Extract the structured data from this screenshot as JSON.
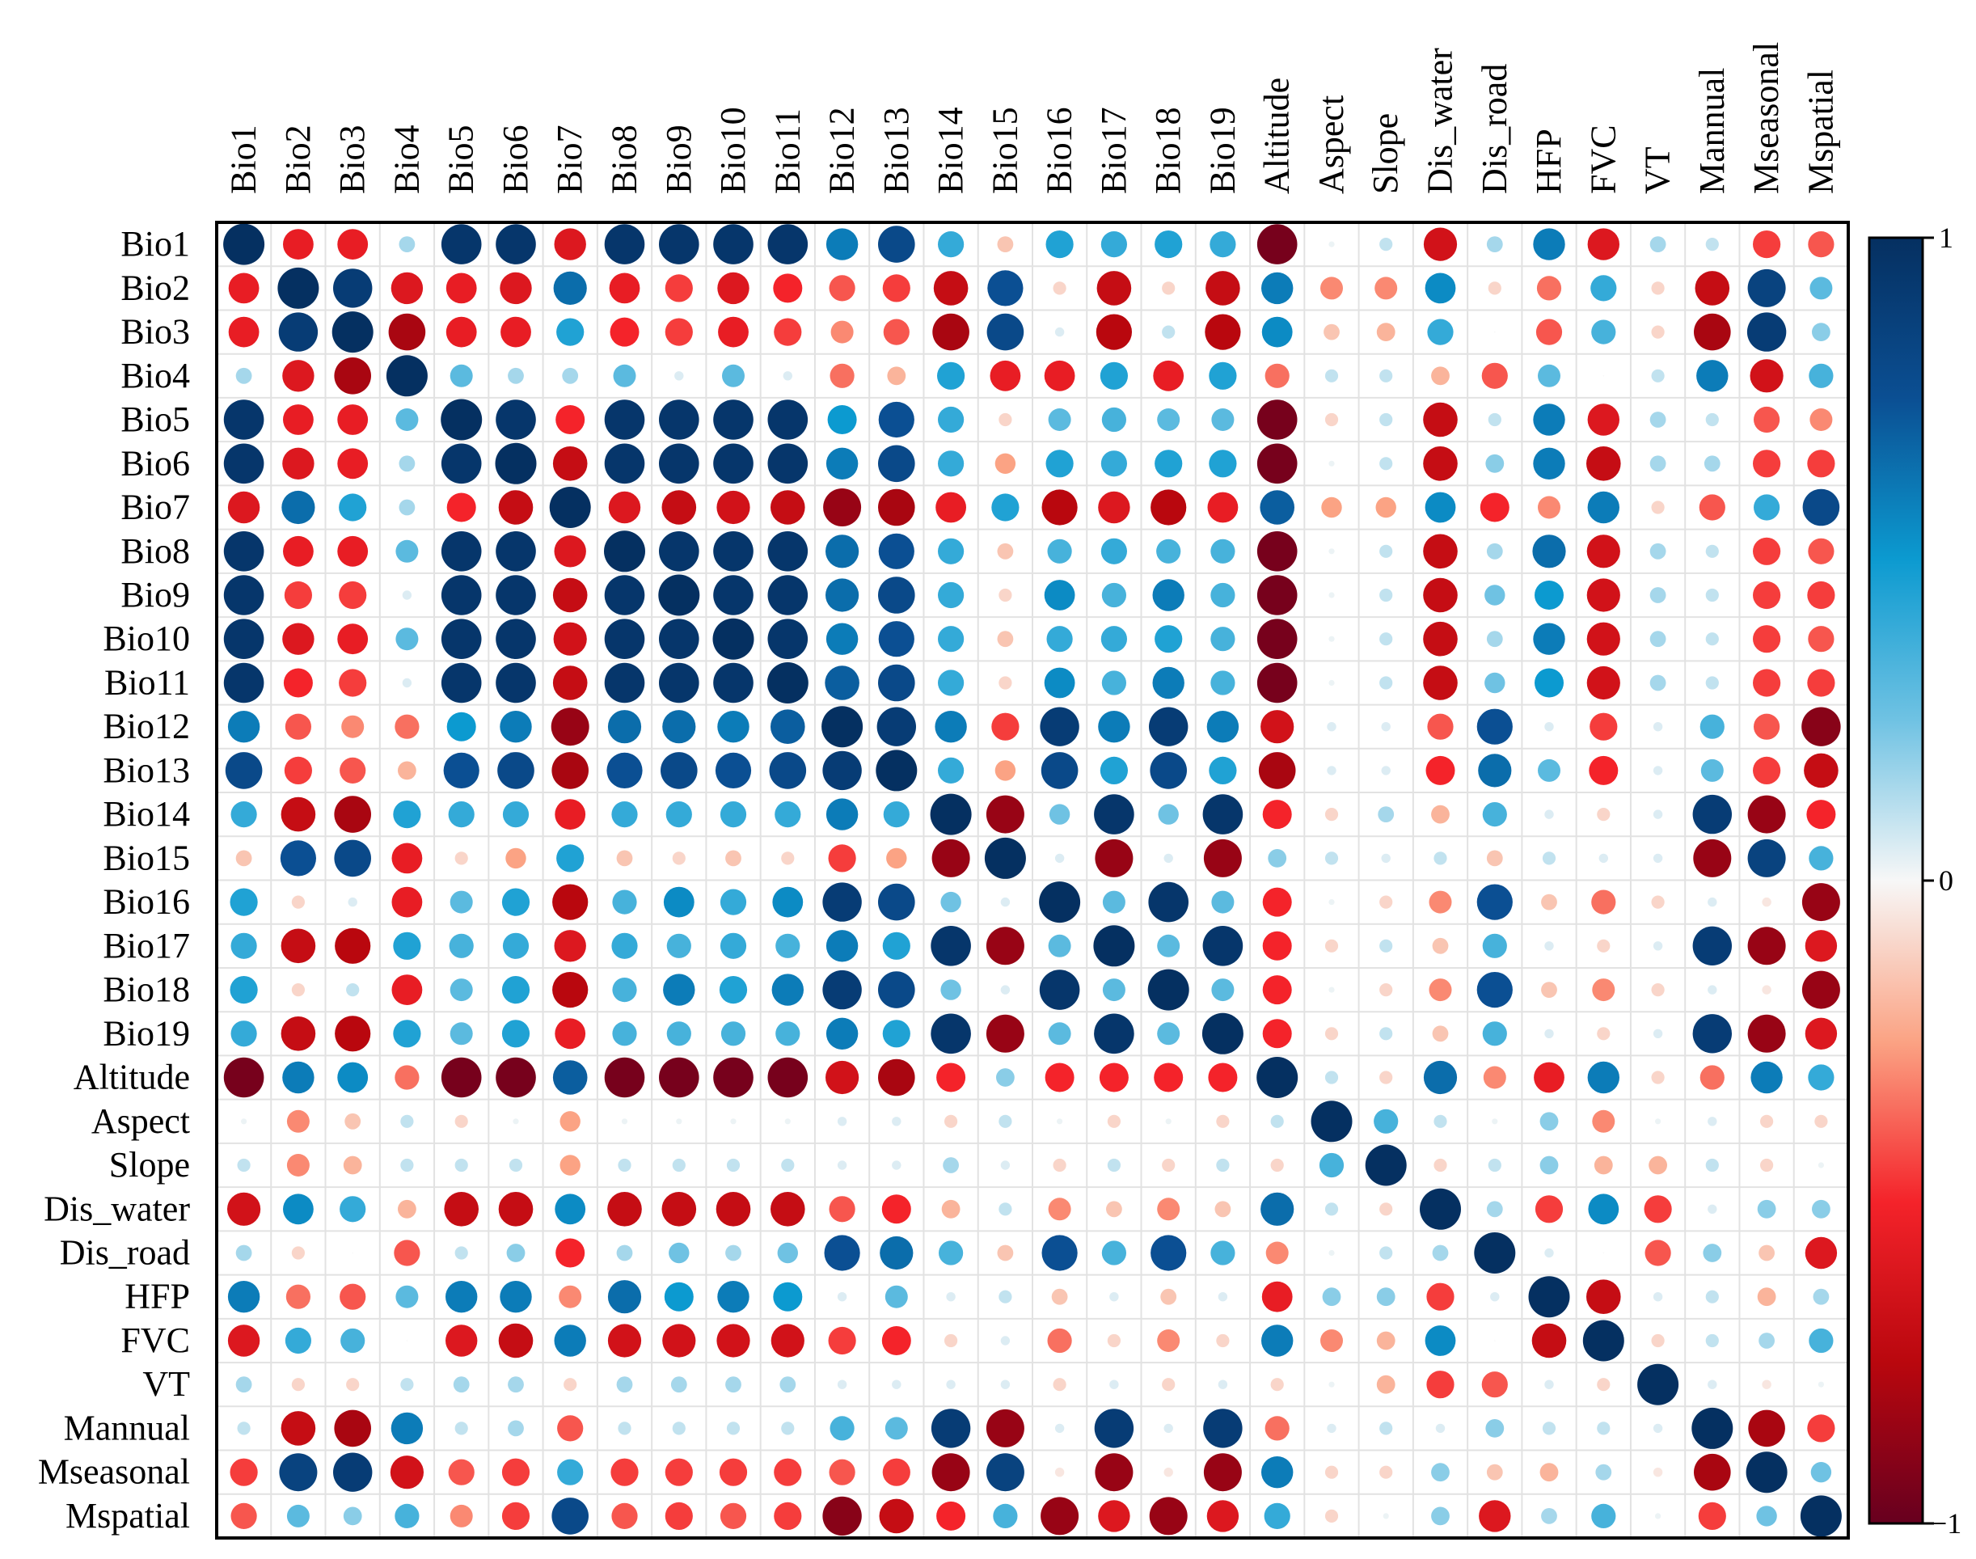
{
  "chart_data": {
    "type": "heatmap",
    "style": "circle-correlation-matrix",
    "title": "",
    "variables": [
      "Bio1",
      "Bio2",
      "Bio3",
      "Bio4",
      "Bio5",
      "Bio6",
      "Bio7",
      "Bio8",
      "Bio9",
      "Bio10",
      "Bio11",
      "Bio12",
      "Bio13",
      "Bio14",
      "Bio15",
      "Bio16",
      "Bio17",
      "Bio18",
      "Bio19",
      "Altitude",
      "Aspect",
      "Slope",
      "Dis_water",
      "Dis_road",
      "HFP",
      "FVC",
      "VT",
      "Mannual",
      "Mseasonal",
      "Mspatial"
    ],
    "colorbar": {
      "min": -1,
      "max": 1,
      "ticks": [
        "1",
        "0",
        "−1"
      ],
      "placement": "right"
    },
    "colors": {
      "negative_strong": "#67001f",
      "negative_mid": "#f4232a",
      "neutral": "#f7f7f7",
      "positive_mid": "#0c9ad0",
      "positive_strong": "#053061"
    },
    "matrix": [
      [
        1,
        -0.55,
        -0.55,
        0.15,
        0.95,
        0.95,
        -0.6,
        0.95,
        0.95,
        0.95,
        0.95,
        0.6,
        0.8,
        0.4,
        -0.15,
        0.45,
        0.4,
        0.45,
        0.4,
        -0.95,
        0.02,
        0.1,
        -0.65,
        0.15,
        0.6,
        -0.6,
        0.15,
        0.1,
        -0.45,
        -0.4
      ],
      [
        -0.55,
        1,
        0.9,
        -0.6,
        -0.55,
        -0.6,
        0.65,
        -0.55,
        -0.45,
        -0.6,
        -0.5,
        -0.4,
        -0.45,
        -0.7,
        0.75,
        -0.1,
        -0.7,
        -0.1,
        -0.7,
        0.6,
        -0.3,
        -0.3,
        0.55,
        -0.1,
        -0.35,
        0.4,
        -0.1,
        -0.7,
        0.85,
        0.3
      ],
      [
        -0.55,
        0.9,
        1,
        -0.8,
        -0.55,
        -0.55,
        0.45,
        -0.5,
        -0.45,
        -0.55,
        -0.45,
        -0.3,
        -0.4,
        -0.8,
        0.8,
        0.05,
        -0.75,
        0.1,
        -0.75,
        0.55,
        -0.15,
        -0.2,
        0.4,
        0,
        -0.4,
        0.35,
        -0.1,
        -0.8,
        0.9,
        0.2
      ],
      [
        0.15,
        -0.6,
        -0.8,
        1,
        0.3,
        0.15,
        0.15,
        0.3,
        0.05,
        0.3,
        0.05,
        -0.35,
        -0.2,
        0.45,
        -0.55,
        -0.55,
        0.45,
        -0.55,
        0.45,
        -0.35,
        0.1,
        0.1,
        -0.2,
        -0.4,
        0.3,
        0,
        0.1,
        0.6,
        -0.65,
        0.35
      ],
      [
        0.95,
        -0.55,
        -0.55,
        0.3,
        1,
        0.95,
        -0.5,
        0.95,
        0.95,
        0.95,
        0.95,
        0.5,
        0.75,
        0.4,
        -0.1,
        0.3,
        0.35,
        0.3,
        0.3,
        -0.95,
        -0.1,
        0.1,
        -0.7,
        0.1,
        0.6,
        -0.6,
        0.15,
        0.1,
        -0.4,
        -0.3
      ],
      [
        0.95,
        -0.6,
        -0.55,
        0.15,
        0.95,
        1,
        -0.7,
        0.95,
        0.95,
        0.95,
        0.95,
        0.6,
        0.8,
        0.4,
        -0.25,
        0.45,
        0.4,
        0.45,
        0.45,
        -0.95,
        0.02,
        0.1,
        -0.7,
        0.2,
        0.6,
        -0.7,
        0.15,
        0.15,
        -0.45,
        -0.45
      ],
      [
        -0.6,
        0.65,
        0.45,
        0.15,
        -0.5,
        -0.7,
        1,
        -0.6,
        -0.7,
        -0.65,
        -0.7,
        -0.85,
        -0.8,
        -0.55,
        0.45,
        -0.75,
        -0.6,
        -0.75,
        -0.55,
        0.7,
        -0.25,
        -0.25,
        0.55,
        -0.5,
        -0.3,
        0.6,
        -0.1,
        -0.4,
        0.4,
        0.8
      ],
      [
        0.95,
        -0.55,
        -0.55,
        0.3,
        0.95,
        0.95,
        -0.6,
        1,
        0.95,
        0.95,
        0.95,
        0.65,
        0.75,
        0.4,
        -0.15,
        0.35,
        0.4,
        0.35,
        0.35,
        -0.95,
        0.02,
        0.1,
        -0.7,
        0.15,
        0.65,
        -0.65,
        0.15,
        0.1,
        -0.45,
        -0.4
      ],
      [
        0.95,
        -0.45,
        -0.45,
        0.05,
        0.95,
        0.95,
        -0.7,
        0.95,
        1,
        0.95,
        0.95,
        0.65,
        0.8,
        0.4,
        -0.1,
        0.55,
        0.35,
        0.6,
        0.35,
        -0.95,
        0.02,
        0.1,
        -0.7,
        0.25,
        0.5,
        -0.65,
        0.15,
        0.1,
        -0.45,
        -0.45
      ],
      [
        0.95,
        -0.6,
        -0.55,
        0.3,
        0.95,
        0.95,
        -0.65,
        0.95,
        0.95,
        1,
        0.95,
        0.6,
        0.75,
        0.4,
        -0.15,
        0.4,
        0.4,
        0.45,
        0.35,
        -0.95,
        0.02,
        0.1,
        -0.7,
        0.15,
        0.6,
        -0.65,
        0.15,
        0.1,
        -0.45,
        -0.4
      ],
      [
        0.95,
        -0.5,
        -0.45,
        0.05,
        0.95,
        0.95,
        -0.7,
        0.95,
        0.95,
        0.95,
        1,
        0.7,
        0.8,
        0.4,
        -0.1,
        0.55,
        0.35,
        0.6,
        0.35,
        -0.95,
        0.02,
        0.1,
        -0.7,
        0.25,
        0.5,
        -0.65,
        0.15,
        0.1,
        -0.45,
        -0.45
      ],
      [
        0.6,
        -0.4,
        -0.3,
        -0.35,
        0.5,
        0.6,
        -0.85,
        0.65,
        0.65,
        0.6,
        0.7,
        1,
        0.9,
        0.6,
        -0.45,
        0.9,
        0.6,
        0.9,
        0.6,
        -0.65,
        0.05,
        0.05,
        -0.4,
        0.75,
        0.05,
        -0.45,
        0.05,
        0.35,
        -0.4,
        -0.9
      ],
      [
        0.8,
        -0.45,
        -0.4,
        -0.2,
        0.75,
        0.8,
        -0.8,
        0.75,
        0.8,
        0.75,
        0.8,
        0.9,
        1,
        0.4,
        -0.25,
        0.8,
        0.45,
        0.8,
        0.45,
        -0.8,
        0.05,
        0.05,
        -0.5,
        0.65,
        0.3,
        -0.5,
        0.05,
        0.3,
        -0.45,
        -0.7
      ],
      [
        0.4,
        -0.7,
        -0.8,
        0.45,
        0.4,
        0.4,
        -0.55,
        0.4,
        0.4,
        0.4,
        0.4,
        0.6,
        0.4,
        1,
        -0.85,
        0.25,
        0.95,
        0.25,
        0.95,
        -0.5,
        -0.1,
        0.15,
        -0.2,
        0.35,
        0.05,
        -0.1,
        0.05,
        0.9,
        -0.85,
        -0.5
      ],
      [
        -0.15,
        0.75,
        0.8,
        -0.55,
        -0.1,
        -0.25,
        0.45,
        -0.15,
        -0.1,
        -0.15,
        -0.1,
        -0.45,
        -0.25,
        -0.85,
        1,
        0.05,
        -0.85,
        0.05,
        -0.85,
        0.2,
        0.1,
        0.05,
        0.1,
        -0.15,
        0.1,
        0.05,
        0.05,
        -0.85,
        0.85,
        0.35
      ],
      [
        0.45,
        -0.1,
        0.05,
        -0.55,
        0.3,
        0.45,
        -0.75,
        0.35,
        0.55,
        0.4,
        0.55,
        0.9,
        0.8,
        0.25,
        0.05,
        1,
        0.3,
        0.95,
        0.3,
        -0.5,
        0.02,
        -0.1,
        -0.3,
        0.75,
        -0.15,
        -0.35,
        -0.1,
        0.05,
        -0.05,
        -0.85
      ],
      [
        0.4,
        -0.7,
        -0.75,
        0.45,
        0.35,
        0.4,
        -0.6,
        0.4,
        0.35,
        0.4,
        0.35,
        0.6,
        0.45,
        0.95,
        -0.85,
        0.3,
        1,
        0.3,
        0.95,
        -0.5,
        -0.1,
        0.1,
        -0.15,
        0.35,
        0.05,
        -0.1,
        0.05,
        0.9,
        -0.85,
        -0.6
      ],
      [
        0.45,
        -0.1,
        0.1,
        -0.55,
        0.3,
        0.45,
        -0.75,
        0.35,
        0.6,
        0.45,
        0.6,
        0.9,
        0.8,
        0.25,
        0.05,
        0.95,
        0.3,
        1,
        0.3,
        -0.5,
        0.02,
        -0.1,
        -0.3,
        0.75,
        -0.15,
        -0.3,
        -0.1,
        0.05,
        -0.05,
        -0.85
      ],
      [
        0.4,
        -0.7,
        -0.75,
        0.45,
        0.3,
        0.45,
        -0.55,
        0.35,
        0.35,
        0.35,
        0.35,
        0.6,
        0.45,
        0.95,
        -0.85,
        0.3,
        0.95,
        0.3,
        1,
        -0.5,
        -0.1,
        0.1,
        -0.15,
        0.35,
        0.05,
        -0.1,
        0.05,
        0.9,
        -0.85,
        -0.6
      ],
      [
        -0.95,
        0.6,
        0.55,
        -0.35,
        -0.95,
        -0.95,
        0.7,
        -0.95,
        -0.95,
        -0.95,
        -0.95,
        -0.65,
        -0.8,
        -0.5,
        0.2,
        -0.5,
        -0.5,
        -0.5,
        -0.5,
        1,
        0.1,
        -0.1,
        0.65,
        -0.3,
        -0.55,
        0.6,
        -0.1,
        -0.35,
        0.6,
        0.4
      ],
      [
        0.02,
        -0.3,
        -0.15,
        0.1,
        -0.1,
        0.02,
        -0.25,
        0.02,
        0.02,
        0.02,
        0.02,
        0.05,
        0.05,
        -0.1,
        0.1,
        0.02,
        -0.1,
        0.02,
        -0.1,
        0.1,
        1,
        0.35,
        0.1,
        0.02,
        0.2,
        -0.3,
        0.02,
        0.05,
        -0.1,
        -0.1
      ],
      [
        0.1,
        -0.3,
        -0.2,
        0.1,
        0.1,
        0.1,
        -0.25,
        0.1,
        0.1,
        0.1,
        0.1,
        0.05,
        0.05,
        0.15,
        0.05,
        -0.1,
        0.1,
        -0.1,
        0.1,
        -0.1,
        0.35,
        1,
        -0.1,
        0.1,
        0.2,
        -0.2,
        -0.2,
        0.1,
        -0.1,
        0.02
      ],
      [
        -0.65,
        0.55,
        0.4,
        -0.2,
        -0.7,
        -0.7,
        0.55,
        -0.7,
        -0.7,
        -0.7,
        -0.7,
        -0.4,
        -0.5,
        -0.2,
        0.1,
        -0.3,
        -0.15,
        -0.3,
        -0.15,
        0.65,
        0.1,
        -0.1,
        1,
        0.15,
        -0.45,
        0.55,
        -0.45,
        0.05,
        0.2,
        0.2
      ],
      [
        0.15,
        -0.1,
        0,
        -0.4,
        0.1,
        0.2,
        -0.5,
        0.15,
        0.25,
        0.15,
        0.25,
        0.75,
        0.65,
        0.35,
        -0.15,
        0.75,
        0.35,
        0.75,
        0.35,
        -0.3,
        0.02,
        0.1,
        0.15,
        1,
        0.05,
        0,
        -0.4,
        0.2,
        -0.15,
        -0.6
      ],
      [
        0.6,
        -0.35,
        -0.4,
        0.3,
        0.6,
        0.6,
        -0.3,
        0.65,
        0.5,
        0.6,
        0.5,
        0.05,
        0.3,
        0.05,
        0.1,
        -0.15,
        0.05,
        -0.15,
        0.05,
        -0.55,
        0.2,
        0.2,
        -0.45,
        0.05,
        1,
        -0.7,
        0.05,
        0.1,
        -0.2,
        0.15
      ],
      [
        -0.6,
        0.4,
        0.35,
        0,
        -0.6,
        -0.7,
        0.6,
        -0.65,
        -0.65,
        -0.65,
        -0.65,
        -0.45,
        -0.5,
        -0.1,
        0.05,
        -0.35,
        -0.1,
        -0.3,
        -0.1,
        0.6,
        -0.3,
        -0.2,
        0.55,
        0,
        -0.7,
        1,
        -0.1,
        0.1,
        0.15,
        0.35
      ],
      [
        0.15,
        -0.1,
        -0.1,
        0.1,
        0.15,
        0.15,
        -0.1,
        0.15,
        0.15,
        0.15,
        0.15,
        0.05,
        0.05,
        0.05,
        0.05,
        -0.1,
        0.05,
        -0.1,
        0.05,
        -0.1,
        0.02,
        -0.2,
        -0.45,
        -0.4,
        0.05,
        -0.1,
        1,
        0.05,
        -0.05,
        0.02
      ],
      [
        0.1,
        -0.7,
        -0.8,
        0.6,
        0.1,
        0.15,
        -0.4,
        0.1,
        0.1,
        0.1,
        0.1,
        0.35,
        0.3,
        0.9,
        -0.85,
        0.05,
        0.9,
        0.05,
        0.9,
        -0.35,
        0.05,
        0.1,
        0.05,
        0.2,
        0.1,
        0.1,
        0.05,
        1,
        -0.8,
        -0.45
      ],
      [
        -0.45,
        0.85,
        0.9,
        -0.65,
        -0.4,
        -0.45,
        0.4,
        -0.45,
        -0.45,
        -0.45,
        -0.45,
        -0.4,
        -0.45,
        -0.85,
        0.85,
        -0.05,
        -0.85,
        -0.05,
        -0.85,
        0.6,
        -0.1,
        -0.1,
        0.2,
        -0.15,
        -0.2,
        0.15,
        -0.05,
        -0.8,
        1,
        0.25
      ],
      [
        -0.4,
        0.3,
        0.2,
        0.35,
        -0.3,
        -0.45,
        0.8,
        -0.4,
        -0.45,
        -0.4,
        -0.45,
        -0.9,
        -0.7,
        -0.5,
        0.35,
        -0.85,
        -0.6,
        -0.85,
        -0.6,
        0.4,
        -0.1,
        0.02,
        0.2,
        -0.6,
        0.15,
        0.35,
        0.02,
        -0.45,
        0.25,
        1
      ]
    ]
  }
}
